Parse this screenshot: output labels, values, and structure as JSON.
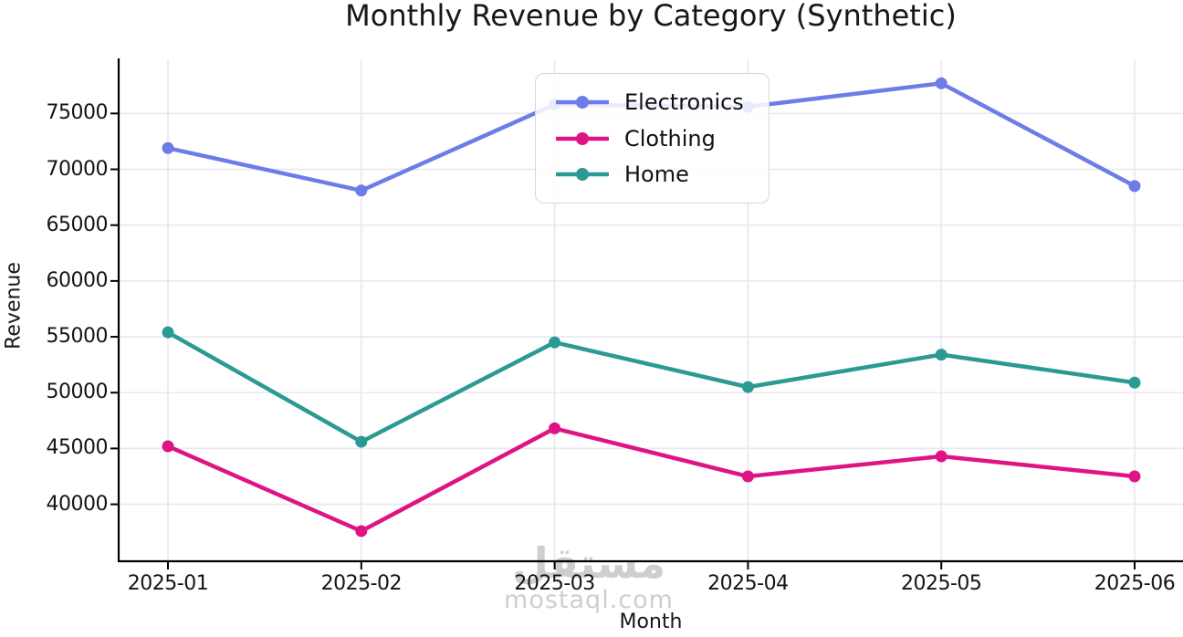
{
  "title": "Monthly Revenue by Category (Synthetic)",
  "watermark": {
    "line1": "مستقل",
    "line2": "mostaql.com"
  },
  "colors": {
    "grid": "#e8e8ef",
    "axis": "#000000",
    "text": "#171717",
    "watermark": "#c2c2c2",
    "legend_border": "#d6d6d6"
  },
  "chart_data": {
    "type": "line",
    "title": "Monthly Revenue by Category (Synthetic)",
    "xlabel": "Month",
    "ylabel": "Revenue",
    "x": [
      "2025-01",
      "2025-02",
      "2025-03",
      "2025-04",
      "2025-05",
      "2025-06"
    ],
    "series": [
      {
        "name": "Electronics",
        "color": "#6d7de8",
        "values": [
          71900,
          68100,
          75800,
          75600,
          77700,
          68500
        ]
      },
      {
        "name": "Clothing",
        "color": "#de1484",
        "values": [
          45200,
          37600,
          46800,
          42500,
          44300,
          42500
        ]
      },
      {
        "name": "Home",
        "color": "#2b9a92",
        "values": [
          55400,
          45600,
          54500,
          50500,
          53400,
          50900
        ]
      }
    ],
    "yticks": [
      40000,
      45000,
      50000,
      55000,
      60000,
      65000,
      70000,
      75000
    ],
    "ylim": [
      34900,
      79850
    ],
    "grid": true,
    "legend_position": "upper center"
  }
}
